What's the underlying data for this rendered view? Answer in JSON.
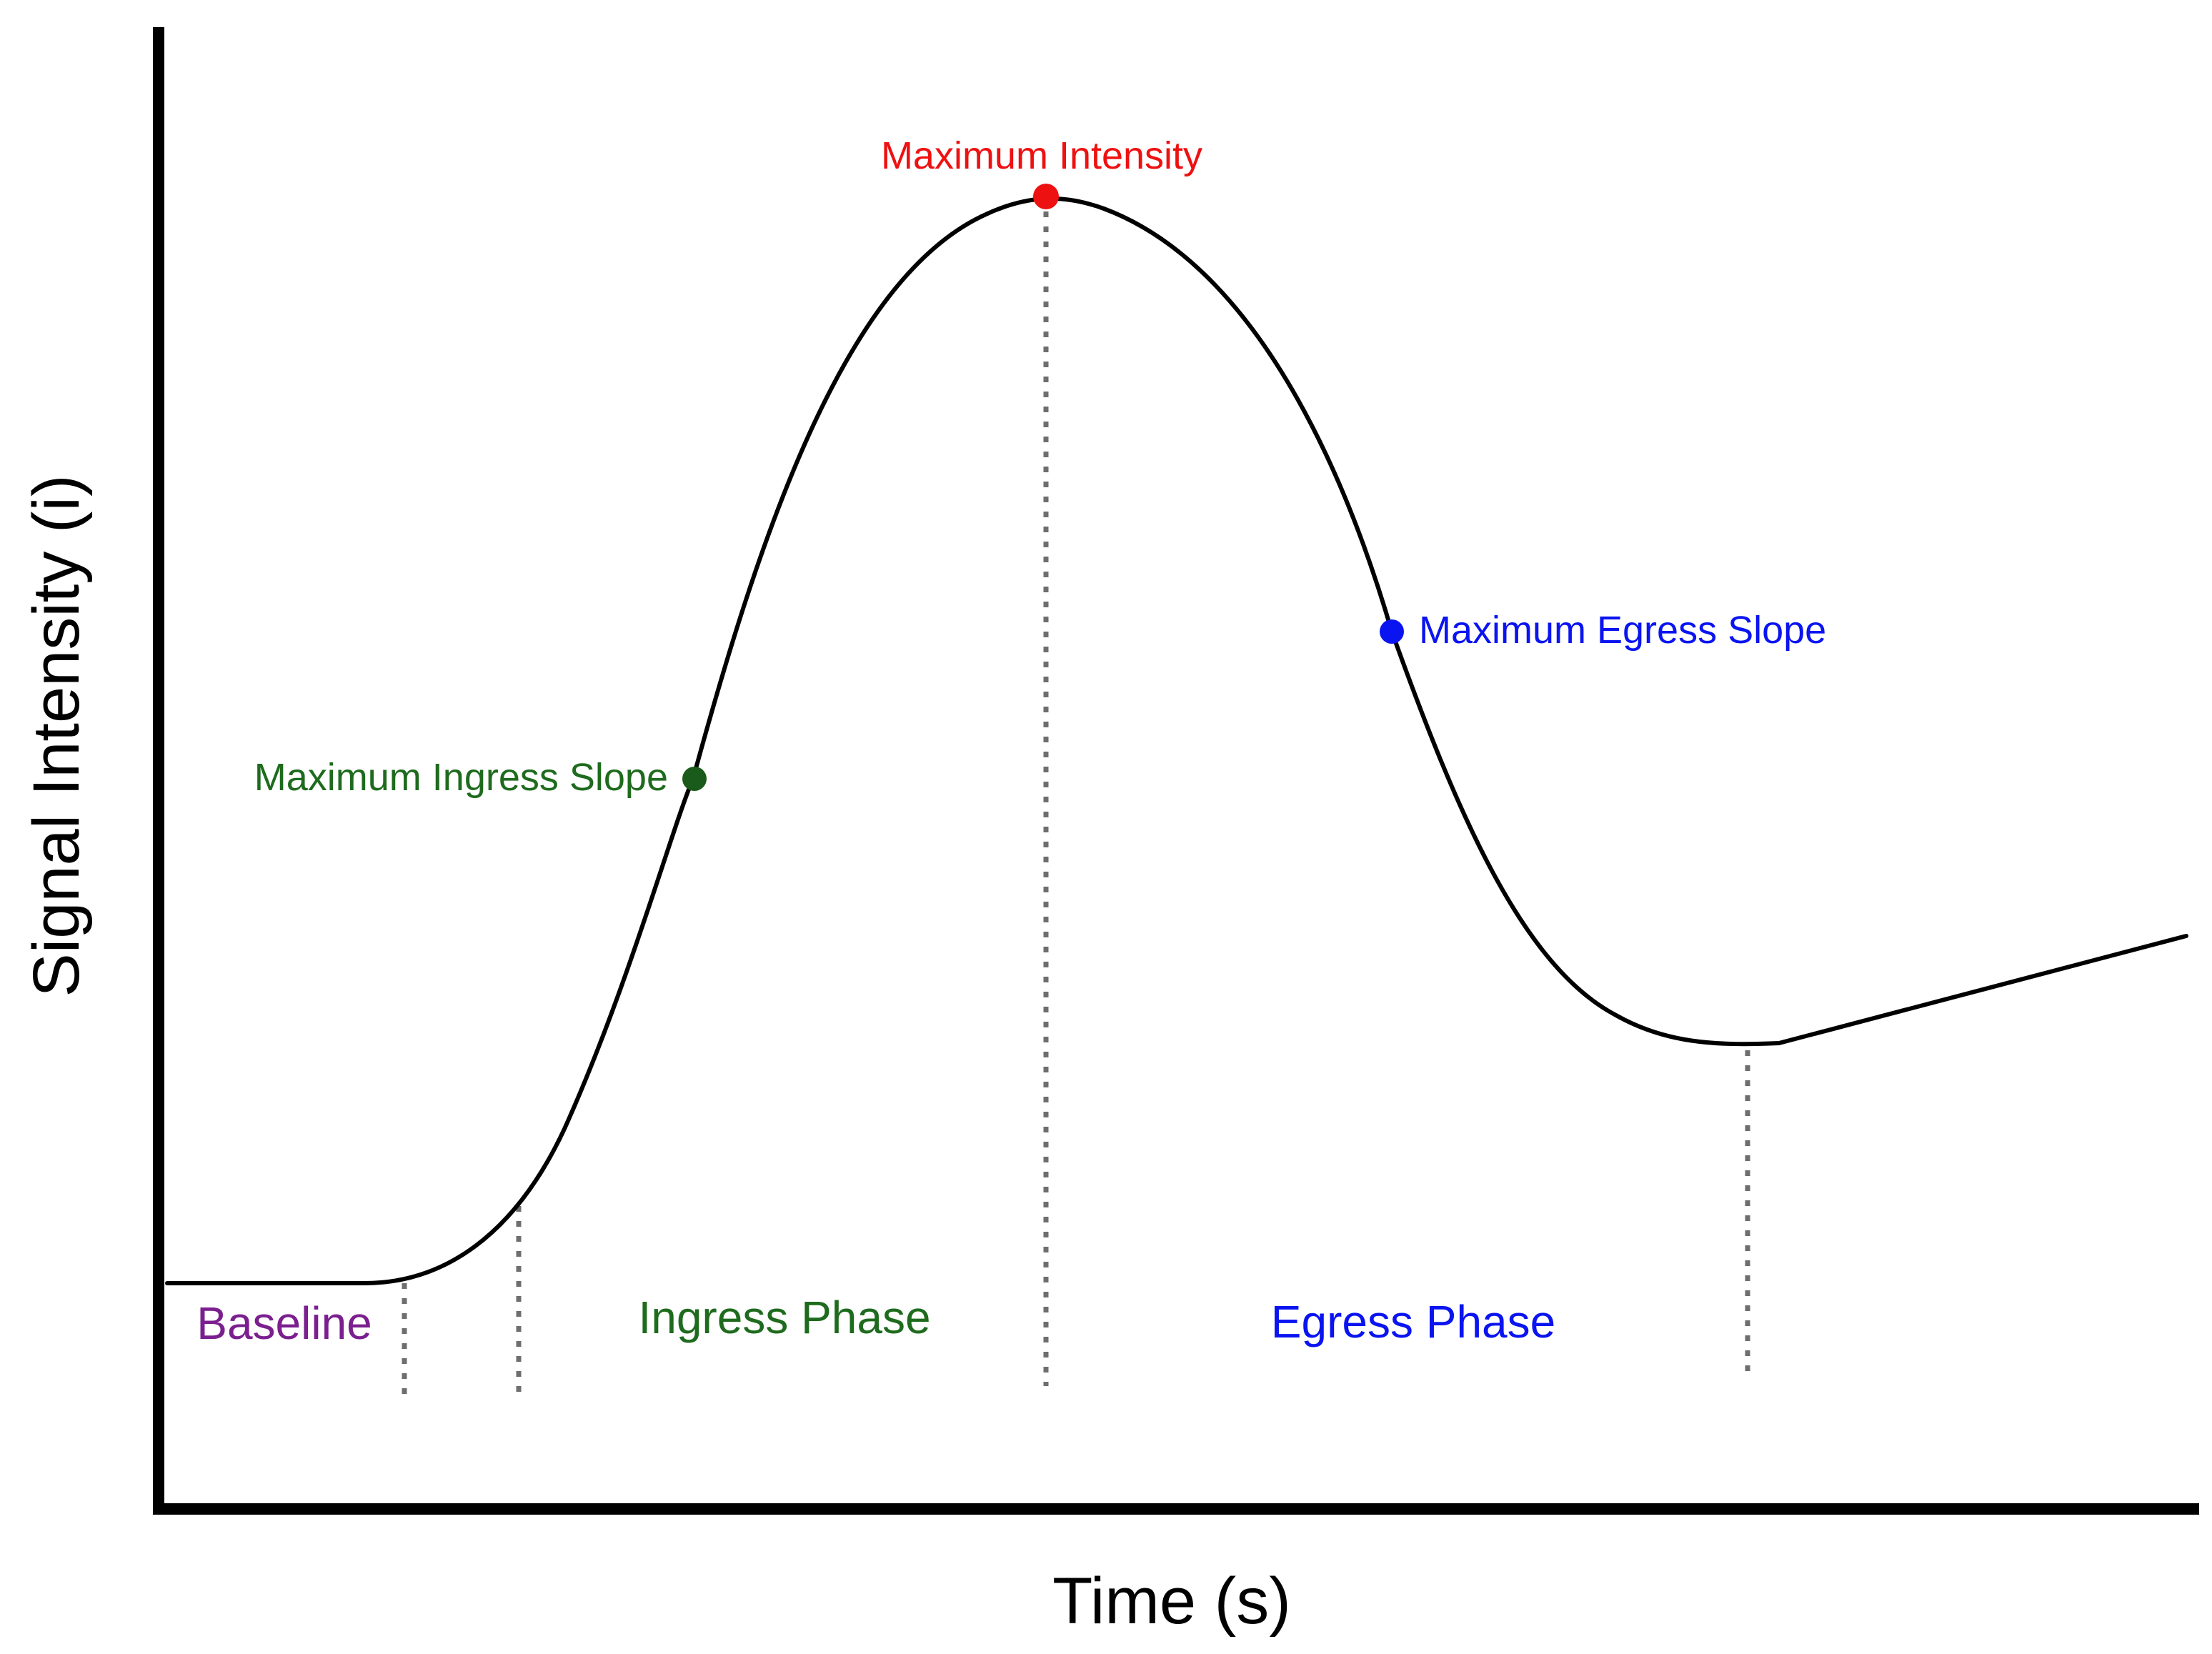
{
  "axes": {
    "x_title": "Time (s)",
    "y_title": "Signal Intensity (i)"
  },
  "phases": {
    "baseline": "Baseline",
    "ingress": "Ingress Phase",
    "egress": "Egress Phase"
  },
  "key_points": {
    "maximum_intensity": "Maximum Intensity",
    "maximum_ingress_slope": "Maximum Ingress Slope",
    "maximum_egress_slope": "Maximum Egress Slope"
  },
  "colors": {
    "baseline": "#7b1f8f",
    "ingress": "#1e6b1e",
    "egress": "#0a14f0",
    "maximum_intensity": "#ee1111",
    "ingress_slope_point": "#1a5a1a",
    "egress_slope_point": "#0a14f0",
    "curve": "#000000",
    "divider": "#6e6e6e"
  }
}
